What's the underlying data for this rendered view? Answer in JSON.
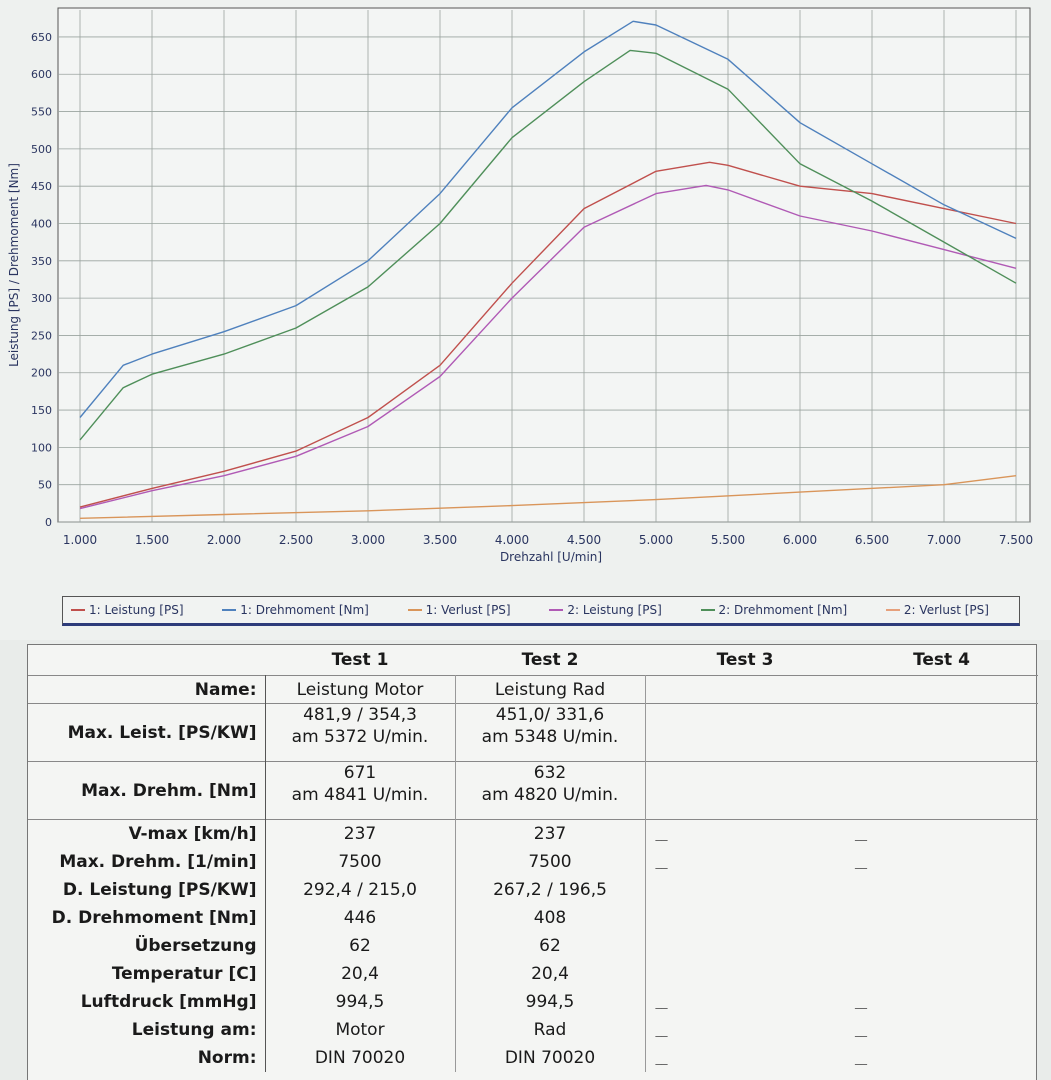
{
  "chart_data": {
    "type": "line",
    "xlabel": "Drehzahl [U/min]",
    "ylabel": "Leistung [PS] / Drehmoment [Nm]",
    "xlim": [
      1000,
      7500
    ],
    "ylim": [
      0,
      670
    ],
    "x_ticks": [
      "1.000",
      "1.500",
      "2.000",
      "2.500",
      "3.000",
      "3.500",
      "4.000",
      "4.500",
      "5.000",
      "5.500",
      "6.000",
      "6.500",
      "7.000",
      "7.500"
    ],
    "y_ticks": [
      "0",
      "50",
      "100",
      "150",
      "200",
      "250",
      "300",
      "350",
      "400",
      "450",
      "500",
      "550",
      "600",
      "650"
    ],
    "grid": true,
    "legend_position": "bottom",
    "series": [
      {
        "name": "1: Leistung [PS]",
        "color": "#c0504d",
        "points": [
          [
            1000,
            20
          ],
          [
            1500,
            45
          ],
          [
            2000,
            68
          ],
          [
            2500,
            95
          ],
          [
            3000,
            140
          ],
          [
            3500,
            210
          ],
          [
            4000,
            320
          ],
          [
            4500,
            420
          ],
          [
            5000,
            470
          ],
          [
            5372,
            482
          ],
          [
            5500,
            478
          ],
          [
            6000,
            450
          ],
          [
            6500,
            440
          ],
          [
            7000,
            420
          ],
          [
            7500,
            400
          ]
        ]
      },
      {
        "name": "1: Drehmoment [Nm]",
        "color": "#4f81bd",
        "points": [
          [
            1000,
            140
          ],
          [
            1300,
            210
          ],
          [
            1500,
            225
          ],
          [
            2000,
            255
          ],
          [
            2500,
            290
          ],
          [
            3000,
            350
          ],
          [
            3500,
            440
          ],
          [
            4000,
            555
          ],
          [
            4500,
            630
          ],
          [
            4841,
            671
          ],
          [
            5000,
            666
          ],
          [
            5500,
            620
          ],
          [
            6000,
            535
          ],
          [
            6500,
            480
          ],
          [
            7000,
            425
          ],
          [
            7500,
            380
          ]
        ]
      },
      {
        "name": "1: Verlust [PS]",
        "color": "#d9955a",
        "points": [
          [
            1000,
            5
          ],
          [
            2000,
            10
          ],
          [
            3000,
            15
          ],
          [
            4000,
            22
          ],
          [
            5000,
            30
          ],
          [
            6000,
            40
          ],
          [
            7000,
            50
          ],
          [
            7500,
            62
          ]
        ]
      },
      {
        "name": "2: Leistung [PS]",
        "color": "#b05ab5",
        "points": [
          [
            1000,
            18
          ],
          [
            1500,
            42
          ],
          [
            2000,
            62
          ],
          [
            2500,
            88
          ],
          [
            3000,
            128
          ],
          [
            3500,
            195
          ],
          [
            4000,
            300
          ],
          [
            4500,
            395
          ],
          [
            5000,
            440
          ],
          [
            5348,
            451
          ],
          [
            5500,
            445
          ],
          [
            6000,
            410
          ],
          [
            6500,
            390
          ],
          [
            7000,
            365
          ],
          [
            7500,
            340
          ]
        ]
      },
      {
        "name": "2: Drehmoment [Nm]",
        "color": "#4f8f5a",
        "points": [
          [
            1000,
            110
          ],
          [
            1300,
            180
          ],
          [
            1500,
            198
          ],
          [
            2000,
            225
          ],
          [
            2500,
            260
          ],
          [
            3000,
            315
          ],
          [
            3500,
            400
          ],
          [
            4000,
            515
          ],
          [
            4500,
            590
          ],
          [
            4820,
            632
          ],
          [
            5000,
            628
          ],
          [
            5500,
            580
          ],
          [
            6000,
            480
          ],
          [
            6500,
            430
          ],
          [
            7000,
            375
          ],
          [
            7500,
            320
          ]
        ]
      },
      {
        "name": "2: Verlust [PS]",
        "color": "#e6a07c",
        "points": []
      }
    ]
  },
  "table": {
    "headers": [
      "Test 1",
      "Test 2",
      "Test 3",
      "Test 4"
    ],
    "rows": [
      {
        "label": "Name:",
        "t1": "Leistung Motor",
        "t2": "Leistung Rad"
      },
      {
        "label": "Max. Leist. [PS/KW]",
        "t1": "481,9 / 354,3",
        "t1b": "am 5372 U/min.",
        "t2": "451,0/ 331,6",
        "t2b": "am 5348 U/min."
      },
      {
        "label": "Max. Drehm. [Nm]",
        "t1": "671",
        "t1b": "am 4841 U/min.",
        "t2": "632",
        "t2b": "am 4820 U/min."
      },
      {
        "label": "V-max [km/h]",
        "t1": "237",
        "t2": "237"
      },
      {
        "label": "Max. Drehm. [1/min]",
        "t1": "7500",
        "t2": "7500"
      },
      {
        "label": "D. Leistung [PS/KW]",
        "t1": "292,4 / 215,0",
        "t2": "267,2 / 196,5"
      },
      {
        "label": "D. Drehmoment [Nm]",
        "t1": "446",
        "t2": "408"
      },
      {
        "label": "Übersetzung",
        "t1": "62",
        "t2": "62"
      },
      {
        "label": "Temperatur [C]",
        "t1": "20,4",
        "t2": "20,4"
      },
      {
        "label": "Luftdruck [mmHg]",
        "t1": "994,5",
        "t2": "994,5"
      },
      {
        "label": "Leistung am:",
        "t1": "Motor",
        "t2": "Rad"
      },
      {
        "label": "Norm:",
        "t1": "DIN 70020",
        "t2": "DIN 70020"
      }
    ],
    "dash": "__"
  }
}
